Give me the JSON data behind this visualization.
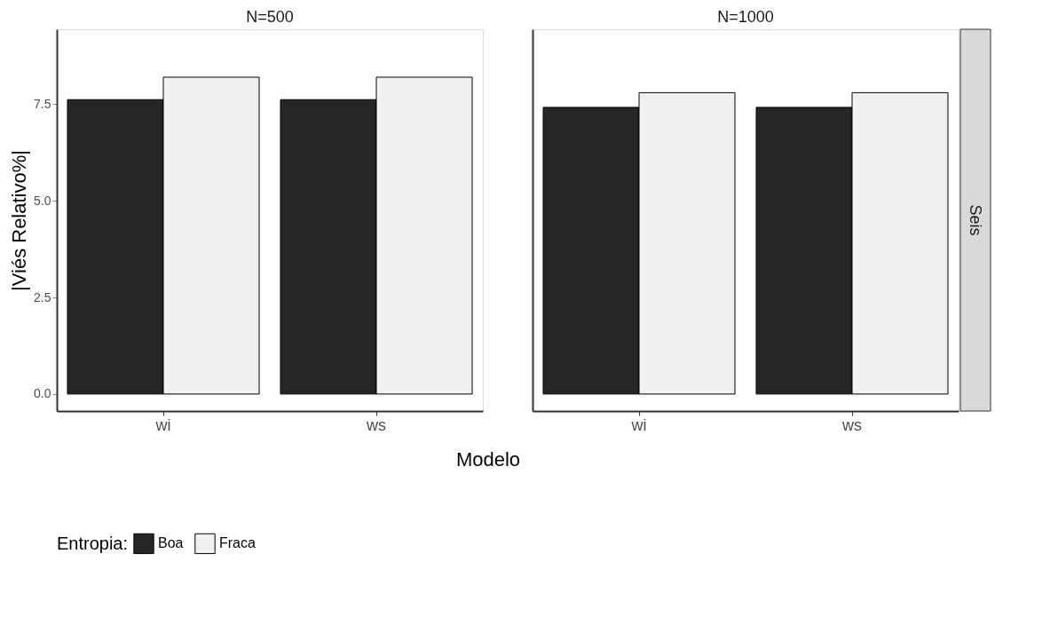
{
  "chart_data": [
    {
      "type": "bar",
      "title": "N=500",
      "xlabel": "Modelo",
      "ylabel": "|Viés Relativo%|",
      "legend_title": "Entropia:",
      "legend": "bottom",
      "grid": false,
      "categories": [
        "wi",
        "ws"
      ],
      "series": [
        {
          "name": "Boa",
          "color": "#262626",
          "values": [
            7.62,
            7.62
          ]
        },
        {
          "name": "Fraca",
          "color": "#f0f0f0",
          "values": [
            8.2,
            8.2
          ]
        }
      ],
      "ylim": [
        -0.44,
        9.44
      ],
      "yticks": [
        {
          "value": 0,
          "label": "0.0"
        },
        {
          "value": 2.5,
          "label": "2.5"
        },
        {
          "value": 5,
          "label": "5.0"
        },
        {
          "value": 7.5,
          "label": "7.5"
        }
      ]
    },
    {
      "type": "bar",
      "title": "N=1000",
      "annotations": [
        "Seis"
      ],
      "grid": false,
      "tick_labels": "x",
      "categories": [
        "wi",
        "ws"
      ],
      "series": [
        {
          "name": "Boa",
          "color": "#262626",
          "values": [
            7.42,
            7.42
          ]
        },
        {
          "name": "Fraca",
          "color": "#f0f0f0",
          "values": [
            7.8,
            7.8
          ]
        }
      ],
      "ylim": [
        -0.44,
        9.44
      ],
      "yticks": [
        {
          "value": 0,
          "label": null
        },
        {
          "value": 2.5,
          "label": null
        },
        {
          "value": 5,
          "label": null
        },
        {
          "value": 7.5,
          "label": null
        }
      ]
    }
  ]
}
